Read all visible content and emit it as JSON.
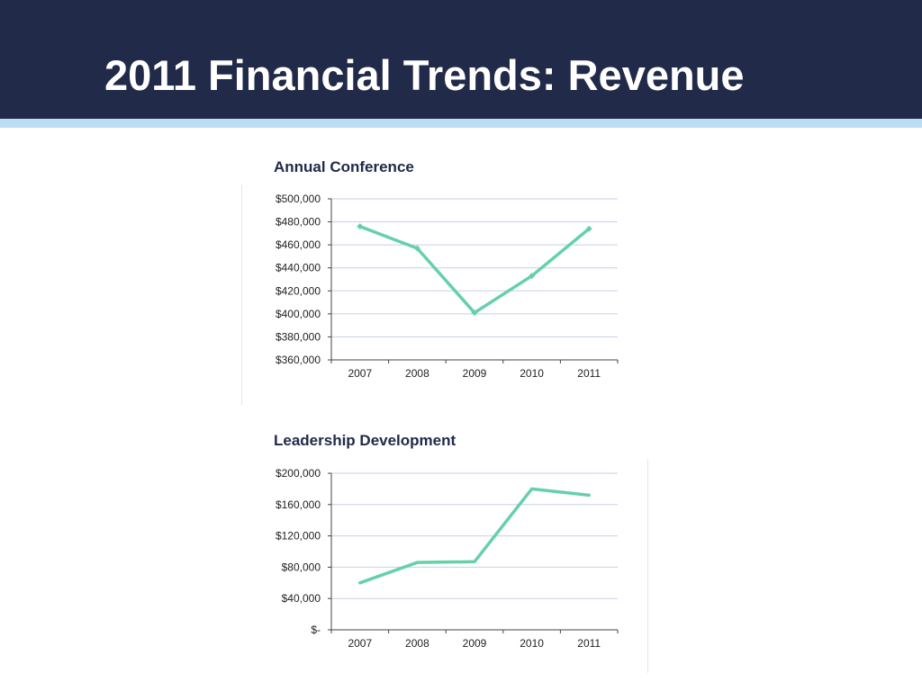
{
  "slide": {
    "title": "2011 Financial Trends: Revenue"
  },
  "colors": {
    "header": "#212a48",
    "stripe": "#bcdcf3",
    "line": "#66d0ab",
    "grid": "#c8cfe8"
  },
  "chart_data": [
    {
      "type": "line",
      "title": "Annual Conference",
      "categories": [
        "2007",
        "2008",
        "2009",
        "2010",
        "2011"
      ],
      "series": [
        {
          "values": [
            476000,
            457000,
            401000,
            433000,
            474000
          ],
          "markers": true
        }
      ],
      "ylim": [
        360000,
        500000
      ],
      "yticks": [
        500000,
        480000,
        460000,
        440000,
        420000,
        400000,
        380000,
        360000
      ],
      "ytick_labels": [
        "$500,000",
        "$480,000",
        "$460,000",
        "$440,000",
        "$420,000",
        "$400,000",
        "$380,000",
        "$360,000"
      ],
      "grid": true,
      "legend": "none"
    },
    {
      "type": "line",
      "title": "Leadership Development",
      "categories": [
        "2007",
        "2008",
        "2009",
        "2010",
        "2011"
      ],
      "series": [
        {
          "values": [
            60000,
            86000,
            87000,
            180000,
            172000
          ],
          "markers": false
        }
      ],
      "ylim": [
        0,
        200000
      ],
      "yticks": [
        200000,
        160000,
        120000,
        80000,
        40000,
        0
      ],
      "ytick_labels": [
        "$200,000",
        "$160,000",
        "$120,000",
        "$80,000",
        "$40,000",
        "$-"
      ],
      "grid": true,
      "legend": "none"
    }
  ]
}
